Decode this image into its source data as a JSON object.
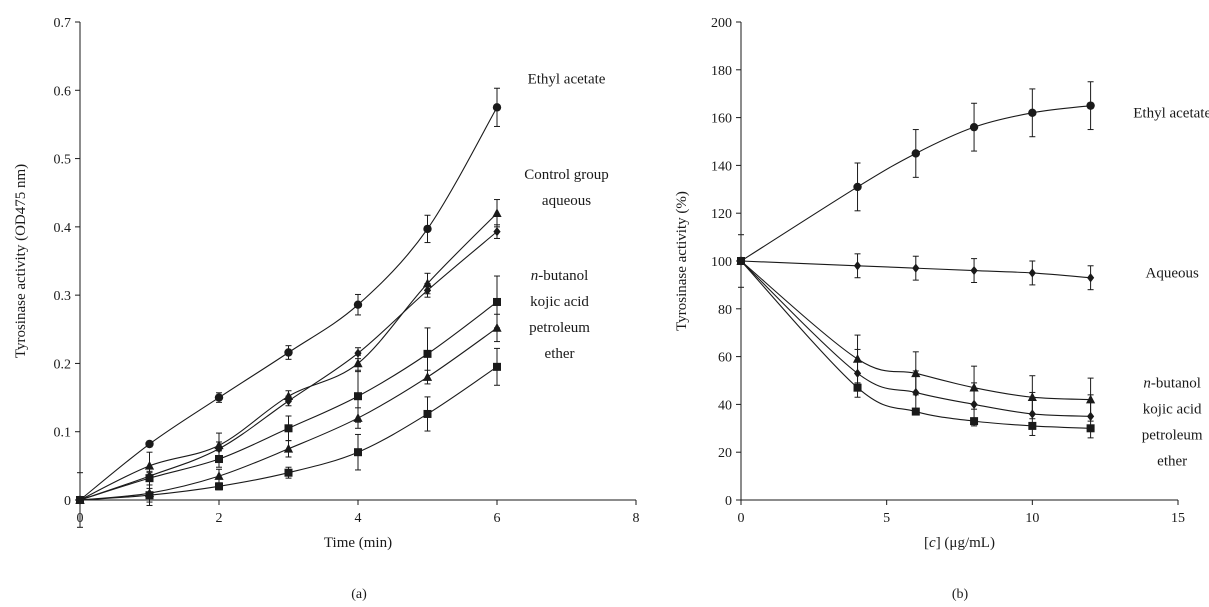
{
  "chart_data": [
    {
      "panel_label": "(a)",
      "type": "line",
      "title": "",
      "xlabel": "Time (min)",
      "ylabel": "Tyrosinase activity (OD475 nm)",
      "xlim": [
        0,
        8
      ],
      "ylim": [
        0,
        0.7
      ],
      "xticks": [
        0,
        2,
        4,
        6,
        8
      ],
      "yticks": [
        0,
        0.1,
        0.2,
        0.3,
        0.4,
        0.5,
        0.6,
        0.7
      ],
      "grid": false,
      "series": [
        {
          "marker": "circle",
          "x": [
            0,
            1,
            2,
            3,
            4,
            5,
            6
          ],
          "y": [
            0,
            0.082,
            0.15,
            0.216,
            0.286,
            0.397,
            0.575
          ],
          "err": [
            0.04,
            0.004,
            0.007,
            0.01,
            0.015,
            0.02,
            0.028
          ]
        },
        {
          "marker": "triangle",
          "x": [
            0,
            1,
            2,
            3,
            4,
            5,
            6
          ],
          "y": [
            0,
            0.05,
            0.08,
            0.152,
            0.2,
            0.317,
            0.42
          ],
          "err": [
            0,
            0.02,
            0.018,
            0.008,
            0.012,
            0.015,
            0.02
          ]
        },
        {
          "marker": "diamond",
          "x": [
            0,
            1,
            2,
            3,
            4,
            5,
            6
          ],
          "y": [
            0,
            0.035,
            0.075,
            0.145,
            0.215,
            0.307,
            0.393
          ],
          "err": [
            0,
            0.005,
            0.01,
            0.007,
            0.008,
            0.01,
            0.01
          ]
        },
        {
          "marker": "square",
          "x": [
            0,
            1,
            2,
            3,
            4,
            5,
            6
          ],
          "y": [
            0,
            0.032,
            0.06,
            0.105,
            0.152,
            0.214,
            0.29
          ],
          "err": [
            0,
            0.01,
            0.012,
            0.018,
            0.038,
            0.038,
            0.038
          ]
        },
        {
          "marker": "triangle",
          "x": [
            0,
            1,
            2,
            3,
            4,
            5,
            6
          ],
          "y": [
            0,
            0.01,
            0.035,
            0.075,
            0.12,
            0.18,
            0.252
          ],
          "err": [
            0,
            0.018,
            0.01,
            0.012,
            0.015,
            0.01,
            0.02
          ]
        },
        {
          "marker": "square",
          "x": [
            0,
            1,
            2,
            3,
            4,
            5,
            6
          ],
          "y": [
            0,
            0.007,
            0.02,
            0.04,
            0.07,
            0.126,
            0.195
          ],
          "err": [
            0,
            0.01,
            0.005,
            0.008,
            0.026,
            0.025,
            0.027
          ]
        }
      ],
      "annotations": [
        {
          "lines": [
            "Ethyl acetate"
          ],
          "at": [
            7.0,
            0.61
          ]
        },
        {
          "lines": [
            "Control group",
            "aqueous"
          ],
          "at": [
            7.0,
            0.47
          ]
        },
        {
          "lines": [
            "n-butanol",
            "kojic acid",
            "petroleum",
            "ether"
          ],
          "at": [
            6.9,
            0.322
          ]
        }
      ]
    },
    {
      "panel_label": "(b)",
      "type": "line",
      "title": "",
      "xlabel": "[c] (μg/mL)",
      "ylabel": "Tyrosinase activity (%)",
      "xlim": [
        0,
        15
      ],
      "ylim": [
        0,
        200
      ],
      "xticks": [
        0,
        5,
        10,
        15
      ],
      "yticks": [
        0,
        20,
        40,
        60,
        80,
        100,
        120,
        140,
        160,
        180,
        200
      ],
      "grid": false,
      "series": [
        {
          "marker": "circle",
          "x": [
            0,
            4,
            6,
            8,
            10,
            12
          ],
          "y": [
            100,
            131,
            145,
            156,
            162,
            165
          ],
          "err": [
            11,
            10,
            10,
            10,
            10,
            10
          ]
        },
        {
          "marker": "diamond",
          "x": [
            0,
            4,
            6,
            8,
            10,
            12
          ],
          "y": [
            100,
            98,
            97,
            96,
            95,
            93
          ],
          "err": [
            0,
            5,
            5,
            5,
            5,
            5
          ]
        },
        {
          "marker": "triangle",
          "x": [
            0,
            4,
            6,
            8,
            10,
            12
          ],
          "y": [
            100,
            59,
            53,
            47,
            43,
            42
          ],
          "err": [
            0,
            10,
            9,
            9,
            9,
            9
          ]
        },
        {
          "marker": "diamond",
          "x": [
            0,
            4,
            6,
            8,
            10,
            12
          ],
          "y": [
            100,
            53,
            45,
            40,
            36,
            35
          ],
          "err": [
            0,
            10,
            9,
            9,
            9,
            9
          ]
        },
        {
          "marker": "square",
          "x": [
            0,
            4,
            6,
            8,
            10,
            12
          ],
          "y": [
            100,
            47,
            37,
            33,
            31,
            30
          ],
          "err": [
            0,
            0,
            0,
            0,
            0,
            0
          ]
        }
      ],
      "annotations": [
        {
          "lines": [
            "Ethyl acetate"
          ],
          "at": [
            14.8,
            160
          ]
        },
        {
          "lines": [
            "Aqueous"
          ],
          "at": [
            14.8,
            93
          ]
        },
        {
          "lines": [
            "n-butanol",
            "kojic acid",
            "petroleum",
            "ether"
          ],
          "at": [
            14.8,
            47
          ]
        }
      ]
    }
  ]
}
